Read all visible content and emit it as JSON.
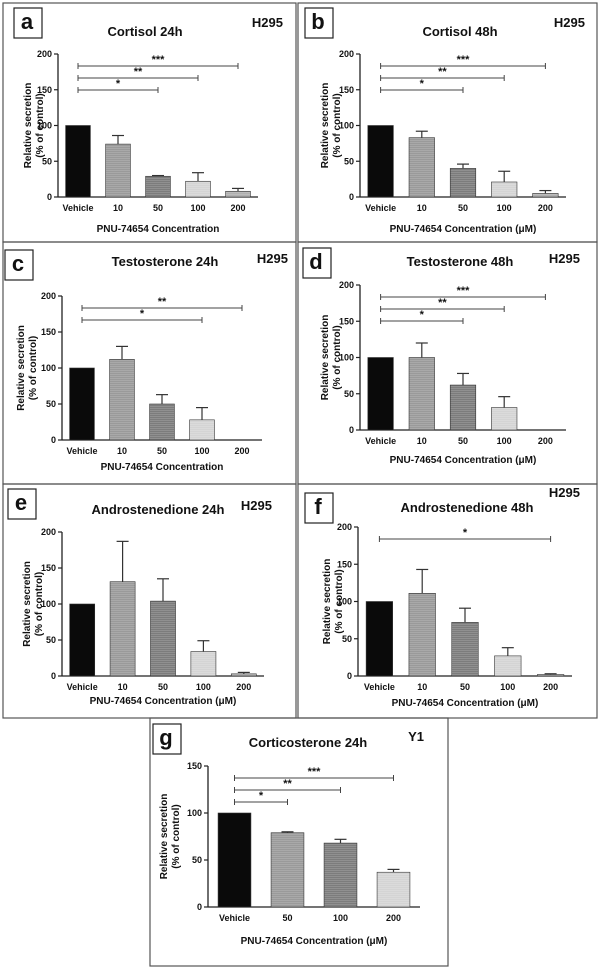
{
  "chart_data": [
    {
      "type": "bar",
      "panel": "a",
      "cell_line": "H295",
      "title": "Cortisol 24h",
      "categories": [
        "Vehicle",
        "10",
        "50",
        "100",
        "200"
      ],
      "values": [
        100,
        74,
        29,
        22,
        8
      ],
      "errors": [
        0,
        12,
        1,
        12,
        4
      ],
      "ylim": [
        0,
        200
      ],
      "yticks": [
        "0",
        "50",
        "100",
        "150",
        "200"
      ],
      "ylabel": [
        "Relative secretion",
        "(% of control)"
      ],
      "xlabel": "PNU-74654 Concentration",
      "significance": [
        {
          "to": 2,
          "label": "*"
        },
        {
          "to": 3,
          "label": "**"
        },
        {
          "to": 4,
          "label": "***"
        }
      ]
    },
    {
      "type": "bar",
      "panel": "b",
      "cell_line": "H295",
      "title": "Cortisol 48h",
      "categories": [
        "Vehicle",
        "10",
        "50",
        "100",
        "200"
      ],
      "values": [
        100,
        83,
        40,
        21,
        5
      ],
      "errors": [
        0,
        9,
        6,
        15,
        4
      ],
      "ylim": [
        0,
        200
      ],
      "yticks": [
        "0",
        "50",
        "100",
        "150",
        "200"
      ],
      "ylabel": [
        "Relative secretion",
        "(% of control)"
      ],
      "xlabel": "PNU-74654 Concentration (μM)",
      "significance": [
        {
          "to": 2,
          "label": "*"
        },
        {
          "to": 3,
          "label": "**"
        },
        {
          "to": 4,
          "label": "***"
        }
      ]
    },
    {
      "type": "bar",
      "panel": "c",
      "cell_line": "H295",
      "title": "Testosterone 24h",
      "categories": [
        "Vehicle",
        "10",
        "50",
        "100",
        "200"
      ],
      "values": [
        100,
        112,
        50,
        28,
        0
      ],
      "errors": [
        0,
        18,
        13,
        17,
        0
      ],
      "ylim": [
        0,
        200
      ],
      "yticks": [
        "0",
        "50",
        "100",
        "150",
        "200"
      ],
      "ylabel": [
        "Relative secretion",
        "(% of control)"
      ],
      "xlabel": "PNU-74654 Concentration",
      "significance": [
        {
          "to": 3,
          "label": "*"
        },
        {
          "to": 4,
          "label": "**"
        }
      ]
    },
    {
      "type": "bar",
      "panel": "d",
      "cell_line": "H295",
      "title": "Testosterone 48h",
      "categories": [
        "Vehicle",
        "10",
        "50",
        "100",
        "200"
      ],
      "values": [
        100,
        100,
        62,
        31,
        0
      ],
      "errors": [
        0,
        20,
        16,
        15,
        0
      ],
      "ylim": [
        0,
        200
      ],
      "yticks": [
        "0",
        "50",
        "100",
        "150",
        "200"
      ],
      "ylabel": [
        "Relative secretion",
        "(% of control)"
      ],
      "xlabel": "PNU-74654 Concentration (μM)",
      "significance": [
        {
          "to": 2,
          "label": "*"
        },
        {
          "to": 3,
          "label": "**"
        },
        {
          "to": 4,
          "label": "***"
        }
      ]
    },
    {
      "type": "bar",
      "panel": "e",
      "cell_line": "H295",
      "title": "Androstenedione 24h",
      "categories": [
        "Vehicle",
        "10",
        "50",
        "100",
        "200"
      ],
      "values": [
        100,
        131,
        104,
        34,
        3
      ],
      "errors": [
        0,
        56,
        31,
        15,
        2
      ],
      "ylim": [
        0,
        200
      ],
      "yticks": [
        "0",
        "50",
        "100",
        "150",
        "200"
      ],
      "ylabel": [
        "Relative secretion",
        "(% of control)"
      ],
      "xlabel": "PNU-74654 Concentration (μM)",
      "significance": []
    },
    {
      "type": "bar",
      "panel": "f",
      "cell_line": "H295",
      "title": "Androstenedione 48h",
      "categories": [
        "Vehicle",
        "10",
        "50",
        "100",
        "200"
      ],
      "values": [
        100,
        111,
        72,
        27,
        2
      ],
      "errors": [
        0,
        32,
        19,
        11,
        1
      ],
      "ylim": [
        0,
        200
      ],
      "yticks": [
        "0",
        "50",
        "100",
        "150",
        "200"
      ],
      "ylabel": [
        "Relative secretion",
        "(% of control)"
      ],
      "xlabel": "PNU-74654 Concentration (μM)",
      "significance": [
        {
          "to": 4,
          "label": "*"
        }
      ]
    },
    {
      "type": "bar",
      "panel": "g",
      "cell_line": "Y1",
      "title": "Corticosterone 24h",
      "categories": [
        "Vehicle",
        "50",
        "100",
        "200"
      ],
      "values": [
        100,
        79,
        68,
        37
      ],
      "errors": [
        0,
        1,
        4,
        3
      ],
      "ylim": [
        0,
        150
      ],
      "yticks": [
        "0",
        "50",
        "100",
        "150"
      ],
      "ylabel": [
        "Relative secretion",
        "(% of control)"
      ],
      "xlabel": "PNU-74654 Concentration (μM)",
      "significance": [
        {
          "to": 1,
          "label": "*"
        },
        {
          "to": 2,
          "label": "**"
        },
        {
          "to": 3,
          "label": "***"
        }
      ]
    }
  ],
  "colors": {
    "frame": "#555555",
    "axis": "#222222",
    "bar_fills": [
      "#0a0a0a",
      "#9a9a9a",
      "#7c7c7c",
      "#d4d4d4",
      "#b0b0b0"
    ]
  }
}
